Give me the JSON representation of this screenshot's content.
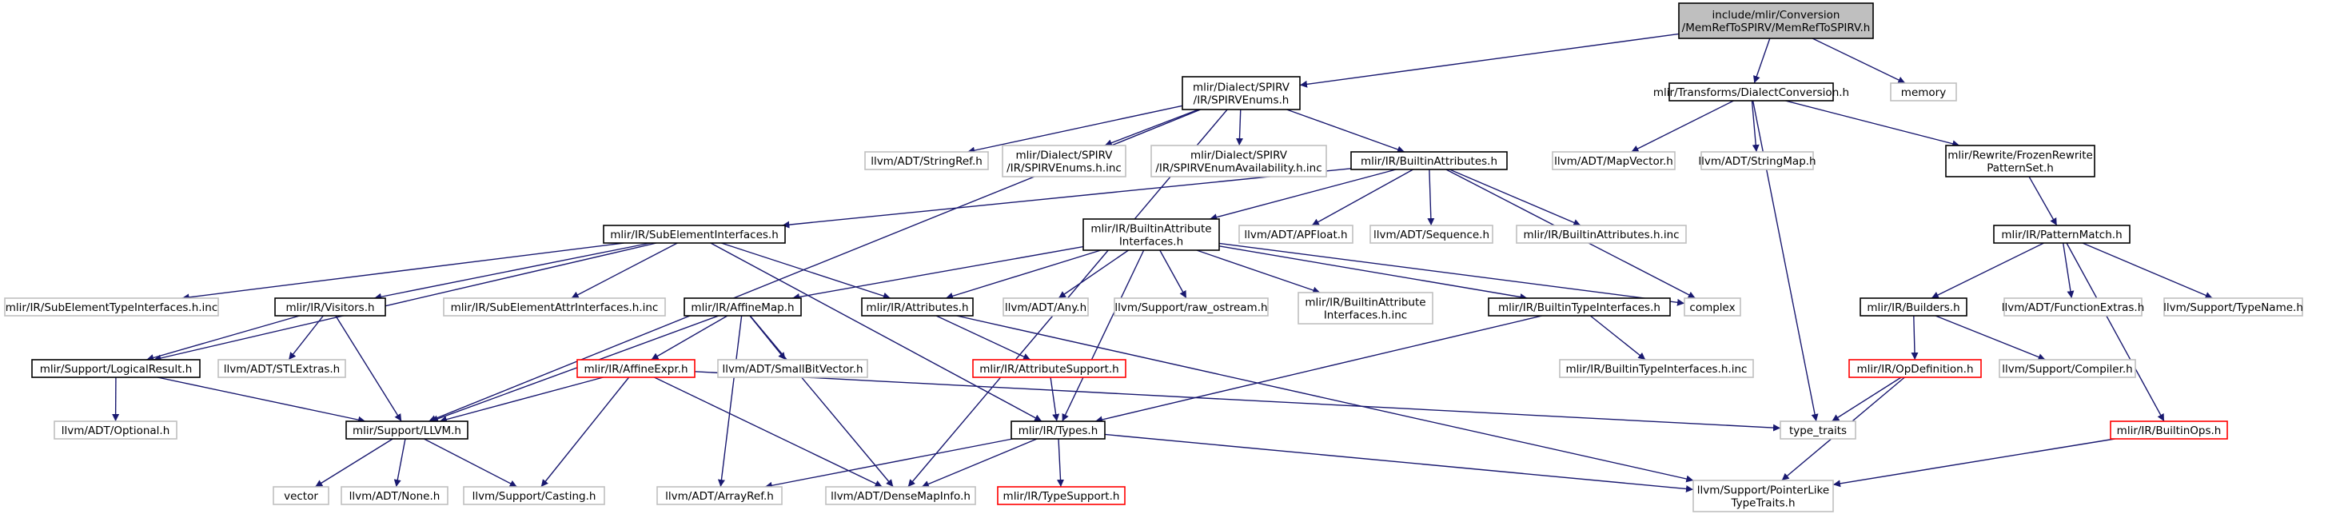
{
  "colors": {
    "root_fill": "#bfbfbf",
    "edge": "#191970",
    "border_normal": "#000000",
    "border_external": "#bfbfbf",
    "border_missing": "#ff0000",
    "text": "#000000"
  },
  "graph": {
    "nodes": [
      {
        "id": "root",
        "lines": [
          "include/mlir/Conversion",
          "/MemRefToSPIRV/MemRefToSPIRV.h"
        ],
        "style": "root"
      },
      {
        "id": "spirvenums",
        "lines": [
          "mlir/Dialect/SPIRV",
          "/IR/SPIRVEnums.h"
        ],
        "style": "normal"
      },
      {
        "id": "dialectconv",
        "lines": [
          "mlir/Transforms/DialectConversion.h"
        ],
        "style": "normal"
      },
      {
        "id": "memory",
        "lines": [
          "memory"
        ],
        "style": "external"
      },
      {
        "id": "stringref",
        "lines": [
          "llvm/ADT/StringRef.h"
        ],
        "style": "external"
      },
      {
        "id": "spirvenumsinc",
        "lines": [
          "mlir/Dialect/SPIRV",
          "/IR/SPIRVEnums.h.inc"
        ],
        "style": "external"
      },
      {
        "id": "spirvavail",
        "lines": [
          "mlir/Dialect/SPIRV",
          "/IR/SPIRVEnumAvailability.h.inc"
        ],
        "style": "external"
      },
      {
        "id": "builtinattrs",
        "lines": [
          "mlir/IR/BuiltinAttributes.h"
        ],
        "style": "normal"
      },
      {
        "id": "mapvector",
        "lines": [
          "llvm/ADT/MapVector.h"
        ],
        "style": "external"
      },
      {
        "id": "stringmap",
        "lines": [
          "llvm/ADT/StringMap.h"
        ],
        "style": "external"
      },
      {
        "id": "frozenrewrite",
        "lines": [
          "mlir/Rewrite/FrozenRewrite",
          "PatternSet.h"
        ],
        "style": "normal"
      },
      {
        "id": "subelement",
        "lines": [
          "mlir/IR/SubElementInterfaces.h"
        ],
        "style": "normal"
      },
      {
        "id": "builtinattrif",
        "lines": [
          "mlir/IR/BuiltinAttribute",
          "Interfaces.h"
        ],
        "style": "normal"
      },
      {
        "id": "apfloat",
        "lines": [
          "llvm/ADT/APFloat.h"
        ],
        "style": "external"
      },
      {
        "id": "sequence",
        "lines": [
          "llvm/ADT/Sequence.h"
        ],
        "style": "external"
      },
      {
        "id": "builtinattrsinc",
        "lines": [
          "mlir/IR/BuiltinAttributes.h.inc"
        ],
        "style": "external"
      },
      {
        "id": "patternmatch",
        "lines": [
          "mlir/IR/PatternMatch.h"
        ],
        "style": "normal"
      },
      {
        "id": "subeltypeinc",
        "lines": [
          "mlir/IR/SubElementTypeInterfaces.h.inc"
        ],
        "style": "external"
      },
      {
        "id": "visitors",
        "lines": [
          "mlir/IR/Visitors.h"
        ],
        "style": "normal"
      },
      {
        "id": "subelattrinc",
        "lines": [
          "mlir/IR/SubElementAttrInterfaces.h.inc"
        ],
        "style": "external"
      },
      {
        "id": "affinemap",
        "lines": [
          "mlir/IR/AffineMap.h"
        ],
        "style": "normal"
      },
      {
        "id": "attributes",
        "lines": [
          "mlir/IR/Attributes.h"
        ],
        "style": "normal"
      },
      {
        "id": "any",
        "lines": [
          "llvm/ADT/Any.h"
        ],
        "style": "external"
      },
      {
        "id": "rawostream",
        "lines": [
          "llvm/Support/raw_ostream.h"
        ],
        "style": "external"
      },
      {
        "id": "builtinattrifinc",
        "lines": [
          "mlir/IR/BuiltinAttribute",
          "Interfaces.h.inc"
        ],
        "style": "external"
      },
      {
        "id": "builtintypeif",
        "lines": [
          "mlir/IR/BuiltinTypeInterfaces.h"
        ],
        "style": "normal"
      },
      {
        "id": "complex",
        "lines": [
          "complex"
        ],
        "style": "external"
      },
      {
        "id": "builders",
        "lines": [
          "mlir/IR/Builders.h"
        ],
        "style": "normal"
      },
      {
        "id": "functionextras",
        "lines": [
          "llvm/ADT/FunctionExtras.h"
        ],
        "style": "external"
      },
      {
        "id": "typename",
        "lines": [
          "llvm/Support/TypeName.h"
        ],
        "style": "external"
      },
      {
        "id": "logicalresult",
        "lines": [
          "mlir/Support/LogicalResult.h"
        ],
        "style": "normal"
      },
      {
        "id": "stlextras",
        "lines": [
          "llvm/ADT/STLExtras.h"
        ],
        "style": "external"
      },
      {
        "id": "affineexpr",
        "lines": [
          "mlir/IR/AffineExpr.h"
        ],
        "style": "missing"
      },
      {
        "id": "smallbitvector",
        "lines": [
          "llvm/ADT/SmallBitVector.h"
        ],
        "style": "external"
      },
      {
        "id": "attrsupport",
        "lines": [
          "mlir/IR/AttributeSupport.h"
        ],
        "style": "missing"
      },
      {
        "id": "builtintypeifinc",
        "lines": [
          "mlir/IR/BuiltinTypeInterfaces.h.inc"
        ],
        "style": "external"
      },
      {
        "id": "opdefinition",
        "lines": [
          "mlir/IR/OpDefinition.h"
        ],
        "style": "missing"
      },
      {
        "id": "compiler",
        "lines": [
          "llvm/Support/Compiler.h"
        ],
        "style": "external"
      },
      {
        "id": "optional",
        "lines": [
          "llvm/ADT/Optional.h"
        ],
        "style": "external"
      },
      {
        "id": "llvmh",
        "lines": [
          "mlir/Support/LLVM.h"
        ],
        "style": "normal"
      },
      {
        "id": "types",
        "lines": [
          "mlir/IR/Types.h"
        ],
        "style": "normal"
      },
      {
        "id": "typetraits",
        "lines": [
          "type_traits"
        ],
        "style": "external"
      },
      {
        "id": "builtinops",
        "lines": [
          "mlir/IR/BuiltinOps.h"
        ],
        "style": "missing"
      },
      {
        "id": "vector",
        "lines": [
          "vector"
        ],
        "style": "external"
      },
      {
        "id": "none",
        "lines": [
          "llvm/ADT/None.h"
        ],
        "style": "external"
      },
      {
        "id": "casting",
        "lines": [
          "llvm/Support/Casting.h"
        ],
        "style": "external"
      },
      {
        "id": "arrayref",
        "lines": [
          "llvm/ADT/ArrayRef.h"
        ],
        "style": "external"
      },
      {
        "id": "densemapinfo",
        "lines": [
          "llvm/ADT/DenseMapInfo.h"
        ],
        "style": "external"
      },
      {
        "id": "typesupport",
        "lines": [
          "mlir/IR/TypeSupport.h"
        ],
        "style": "missing"
      },
      {
        "id": "pointerlike",
        "lines": [
          "llvm/Support/PointerLike",
          "TypeTraits.h"
        ],
        "style": "external"
      }
    ],
    "edges": [
      [
        "root",
        "spirvenums"
      ],
      [
        "root",
        "dialectconv"
      ],
      [
        "root",
        "memory"
      ],
      [
        "spirvenums",
        "stringref"
      ],
      [
        "spirvenums",
        "spirvenumsinc"
      ],
      [
        "spirvenums",
        "spirvavail"
      ],
      [
        "spirvenums",
        "builtinattrs"
      ],
      [
        "spirvenums",
        "llvmh"
      ],
      [
        "spirvenums",
        "densemapinfo"
      ],
      [
        "dialectconv",
        "mapvector"
      ],
      [
        "dialectconv",
        "stringmap"
      ],
      [
        "dialectconv",
        "frozenrewrite"
      ],
      [
        "dialectconv",
        "typetraits"
      ],
      [
        "frozenrewrite",
        "patternmatch"
      ],
      [
        "builtinattrs",
        "subelement"
      ],
      [
        "builtinattrs",
        "builtinattrif"
      ],
      [
        "builtinattrs",
        "apfloat"
      ],
      [
        "builtinattrs",
        "sequence"
      ],
      [
        "builtinattrs",
        "builtinattrsinc"
      ],
      [
        "builtinattrs",
        "complex"
      ],
      [
        "subelement",
        "subeltypeinc"
      ],
      [
        "subelement",
        "visitors"
      ],
      [
        "subelement",
        "subelattrinc"
      ],
      [
        "subelement",
        "attributes"
      ],
      [
        "subelement",
        "types"
      ],
      [
        "subelement",
        "logicalresult"
      ],
      [
        "builtinattrif",
        "affinemap"
      ],
      [
        "builtinattrif",
        "attributes"
      ],
      [
        "builtinattrif",
        "any"
      ],
      [
        "builtinattrif",
        "rawostream"
      ],
      [
        "builtinattrif",
        "builtinattrifinc"
      ],
      [
        "builtinattrif",
        "builtintypeif"
      ],
      [
        "builtinattrif",
        "complex"
      ],
      [
        "builtinattrif",
        "types"
      ],
      [
        "patternmatch",
        "builders"
      ],
      [
        "patternmatch",
        "functionextras"
      ],
      [
        "patternmatch",
        "typename"
      ],
      [
        "patternmatch",
        "builtinops"
      ],
      [
        "visitors",
        "logicalresult"
      ],
      [
        "visitors",
        "stlextras"
      ],
      [
        "visitors",
        "llvmh"
      ],
      [
        "affinemap",
        "affineexpr"
      ],
      [
        "affinemap",
        "smallbitvector"
      ],
      [
        "affinemap",
        "llvmh"
      ],
      [
        "affinemap",
        "densemapinfo"
      ],
      [
        "affinemap",
        "arrayref"
      ],
      [
        "attributes",
        "attrsupport"
      ],
      [
        "attributes",
        "pointerlike"
      ],
      [
        "builtintypeif",
        "builtintypeifinc"
      ],
      [
        "builtintypeif",
        "types"
      ],
      [
        "builders",
        "opdefinition"
      ],
      [
        "builders",
        "compiler"
      ],
      [
        "logicalresult",
        "optional"
      ],
      [
        "logicalresult",
        "llvmh"
      ],
      [
        "affineexpr",
        "llvmh"
      ],
      [
        "affineexpr",
        "casting"
      ],
      [
        "affineexpr",
        "densemapinfo"
      ],
      [
        "affineexpr",
        "typetraits"
      ],
      [
        "attrsupport",
        "types"
      ],
      [
        "opdefinition",
        "typetraits"
      ],
      [
        "opdefinition",
        "pointerlike"
      ],
      [
        "llvmh",
        "vector"
      ],
      [
        "llvmh",
        "none"
      ],
      [
        "llvmh",
        "casting"
      ],
      [
        "types",
        "arrayref"
      ],
      [
        "types",
        "densemapinfo"
      ],
      [
        "types",
        "typesupport"
      ],
      [
        "types",
        "pointerlike"
      ],
      [
        "builtinops",
        "pointerlike"
      ]
    ]
  }
}
